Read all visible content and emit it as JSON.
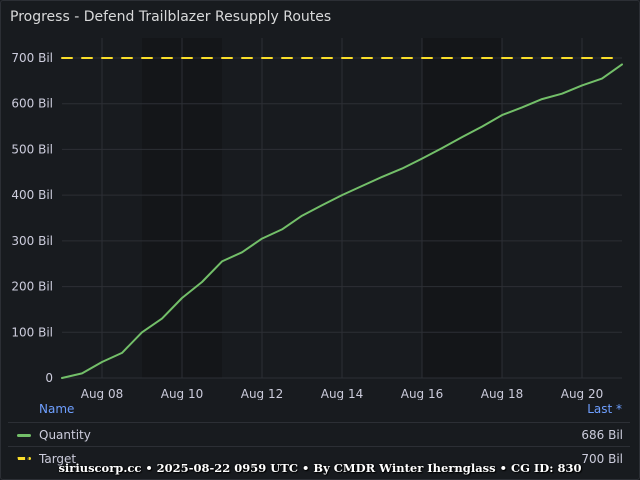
{
  "panel": {
    "title": "Progress - Defend Trailblazer Resupply Routes"
  },
  "colors": {
    "quantity": "#73bf69",
    "target": "#fade2a",
    "grid": "#2c2f35",
    "axis_text": "#ccccdc",
    "legend_header": "#6e9fff"
  },
  "chart_data": {
    "type": "line",
    "y_unit": "Bil",
    "ylim": [
      0,
      700
    ],
    "y_ticks": [
      0,
      100,
      200,
      300,
      400,
      500,
      600,
      700
    ],
    "y_tick_labels": [
      "0",
      "100 Bil",
      "200 Bil",
      "300 Bil",
      "400 Bil",
      "500 Bil",
      "600 Bil",
      "700 Bil"
    ],
    "x_range": [
      "2025-08-07",
      "2025-08-21"
    ],
    "x_ticks": [
      "2025-08-08",
      "2025-08-10",
      "2025-08-12",
      "2025-08-14",
      "2025-08-16",
      "2025-08-18",
      "2025-08-20"
    ],
    "x_tick_labels": [
      "Aug 08",
      "Aug 10",
      "Aug 12",
      "Aug 14",
      "Aug 16",
      "Aug 18",
      "Aug 20"
    ],
    "grid": true,
    "legend_placement": "bottom",
    "series": [
      {
        "name": "Quantity",
        "style": "solid",
        "points": [
          [
            "2025-08-07",
            0
          ],
          [
            "2025-08-07T12:00",
            10
          ],
          [
            "2025-08-08",
            35
          ],
          [
            "2025-08-08T12:00",
            55
          ],
          [
            "2025-08-09",
            100
          ],
          [
            "2025-08-09T12:00",
            130
          ],
          [
            "2025-08-10",
            175
          ],
          [
            "2025-08-10T12:00",
            210
          ],
          [
            "2025-08-11",
            255
          ],
          [
            "2025-08-11T12:00",
            275
          ],
          [
            "2025-08-12",
            305
          ],
          [
            "2025-08-12T12:00",
            325
          ],
          [
            "2025-08-13",
            355
          ],
          [
            "2025-08-13T12:00",
            378
          ],
          [
            "2025-08-14",
            400
          ],
          [
            "2025-08-14T12:00",
            420
          ],
          [
            "2025-08-15",
            440
          ],
          [
            "2025-08-15T12:00",
            458
          ],
          [
            "2025-08-16",
            480
          ],
          [
            "2025-08-16T12:00",
            503
          ],
          [
            "2025-08-17",
            527
          ],
          [
            "2025-08-17T12:00",
            550
          ],
          [
            "2025-08-18",
            575
          ],
          [
            "2025-08-18T12:00",
            592
          ],
          [
            "2025-08-19",
            610
          ],
          [
            "2025-08-19T12:00",
            622
          ],
          [
            "2025-08-20",
            640
          ],
          [
            "2025-08-20T12:00",
            655
          ],
          [
            "2025-08-21",
            686
          ]
        ]
      },
      {
        "name": "Target",
        "style": "dashed",
        "points": [
          [
            "2025-08-07",
            700
          ],
          [
            "2025-08-21",
            700
          ]
        ]
      }
    ]
  },
  "legend": {
    "name_header": "Name",
    "last_header": "Last *",
    "items": [
      {
        "name": "Quantity",
        "last": "686 Bil"
      },
      {
        "name": "Target",
        "last": "700 Bil"
      }
    ]
  },
  "footer": {
    "text": "siriuscorp.cc • 2025-08-22 0959 UTC • By CMDR Winter Ihernglass • CG ID: 830"
  }
}
